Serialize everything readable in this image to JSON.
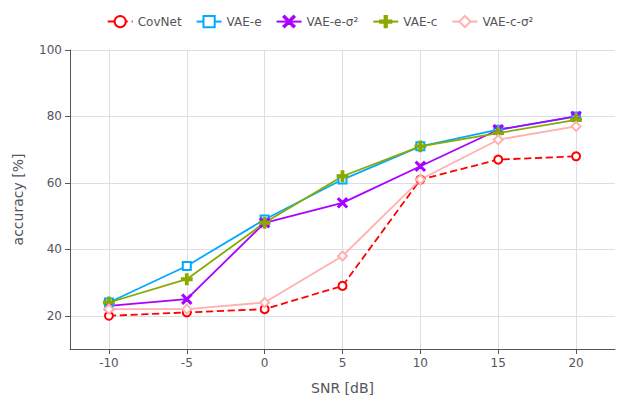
{
  "chart_data": {
    "type": "line",
    "xlabel": "SNR [dB]",
    "ylabel": "accuracy [%]",
    "x": [
      -10,
      -5,
      0,
      5,
      10,
      15,
      20
    ],
    "series": [
      {
        "name": "CovNet",
        "color": "#FF0000",
        "marker": "circle",
        "line_style": "dashed",
        "values": [
          20,
          21,
          22,
          29,
          61,
          67,
          68
        ]
      },
      {
        "name": "VAE-e",
        "color": "#00AAFF",
        "marker": "square",
        "line_style": "solid",
        "values": [
          24,
          35,
          49,
          61,
          71,
          76,
          80
        ]
      },
      {
        "name": "VAE-e-σ²",
        "color": "#AA00FF",
        "marker": "x",
        "line_style": "solid",
        "values": [
          23,
          25,
          48,
          54,
          65,
          76,
          80
        ]
      },
      {
        "name": "VAE-c",
        "color": "#88AA00",
        "marker": "plus",
        "line_style": "solid",
        "values": [
          24,
          31,
          48,
          62,
          71,
          75,
          79
        ]
      },
      {
        "name": "VAE-c-σ²",
        "color": "#FFB0B0",
        "marker": "diamond",
        "line_style": "solid",
        "values": [
          22,
          22,
          24,
          38,
          61,
          73,
          77
        ]
      }
    ],
    "xlim": [
      -12.5,
      22.5
    ],
    "xticks": [
      -10,
      -5,
      0,
      5,
      10,
      15,
      20
    ],
    "ylim": [
      10,
      100
    ],
    "yticks": [
      20,
      40,
      60,
      80,
      100
    ],
    "grid": true,
    "legend": "top"
  }
}
